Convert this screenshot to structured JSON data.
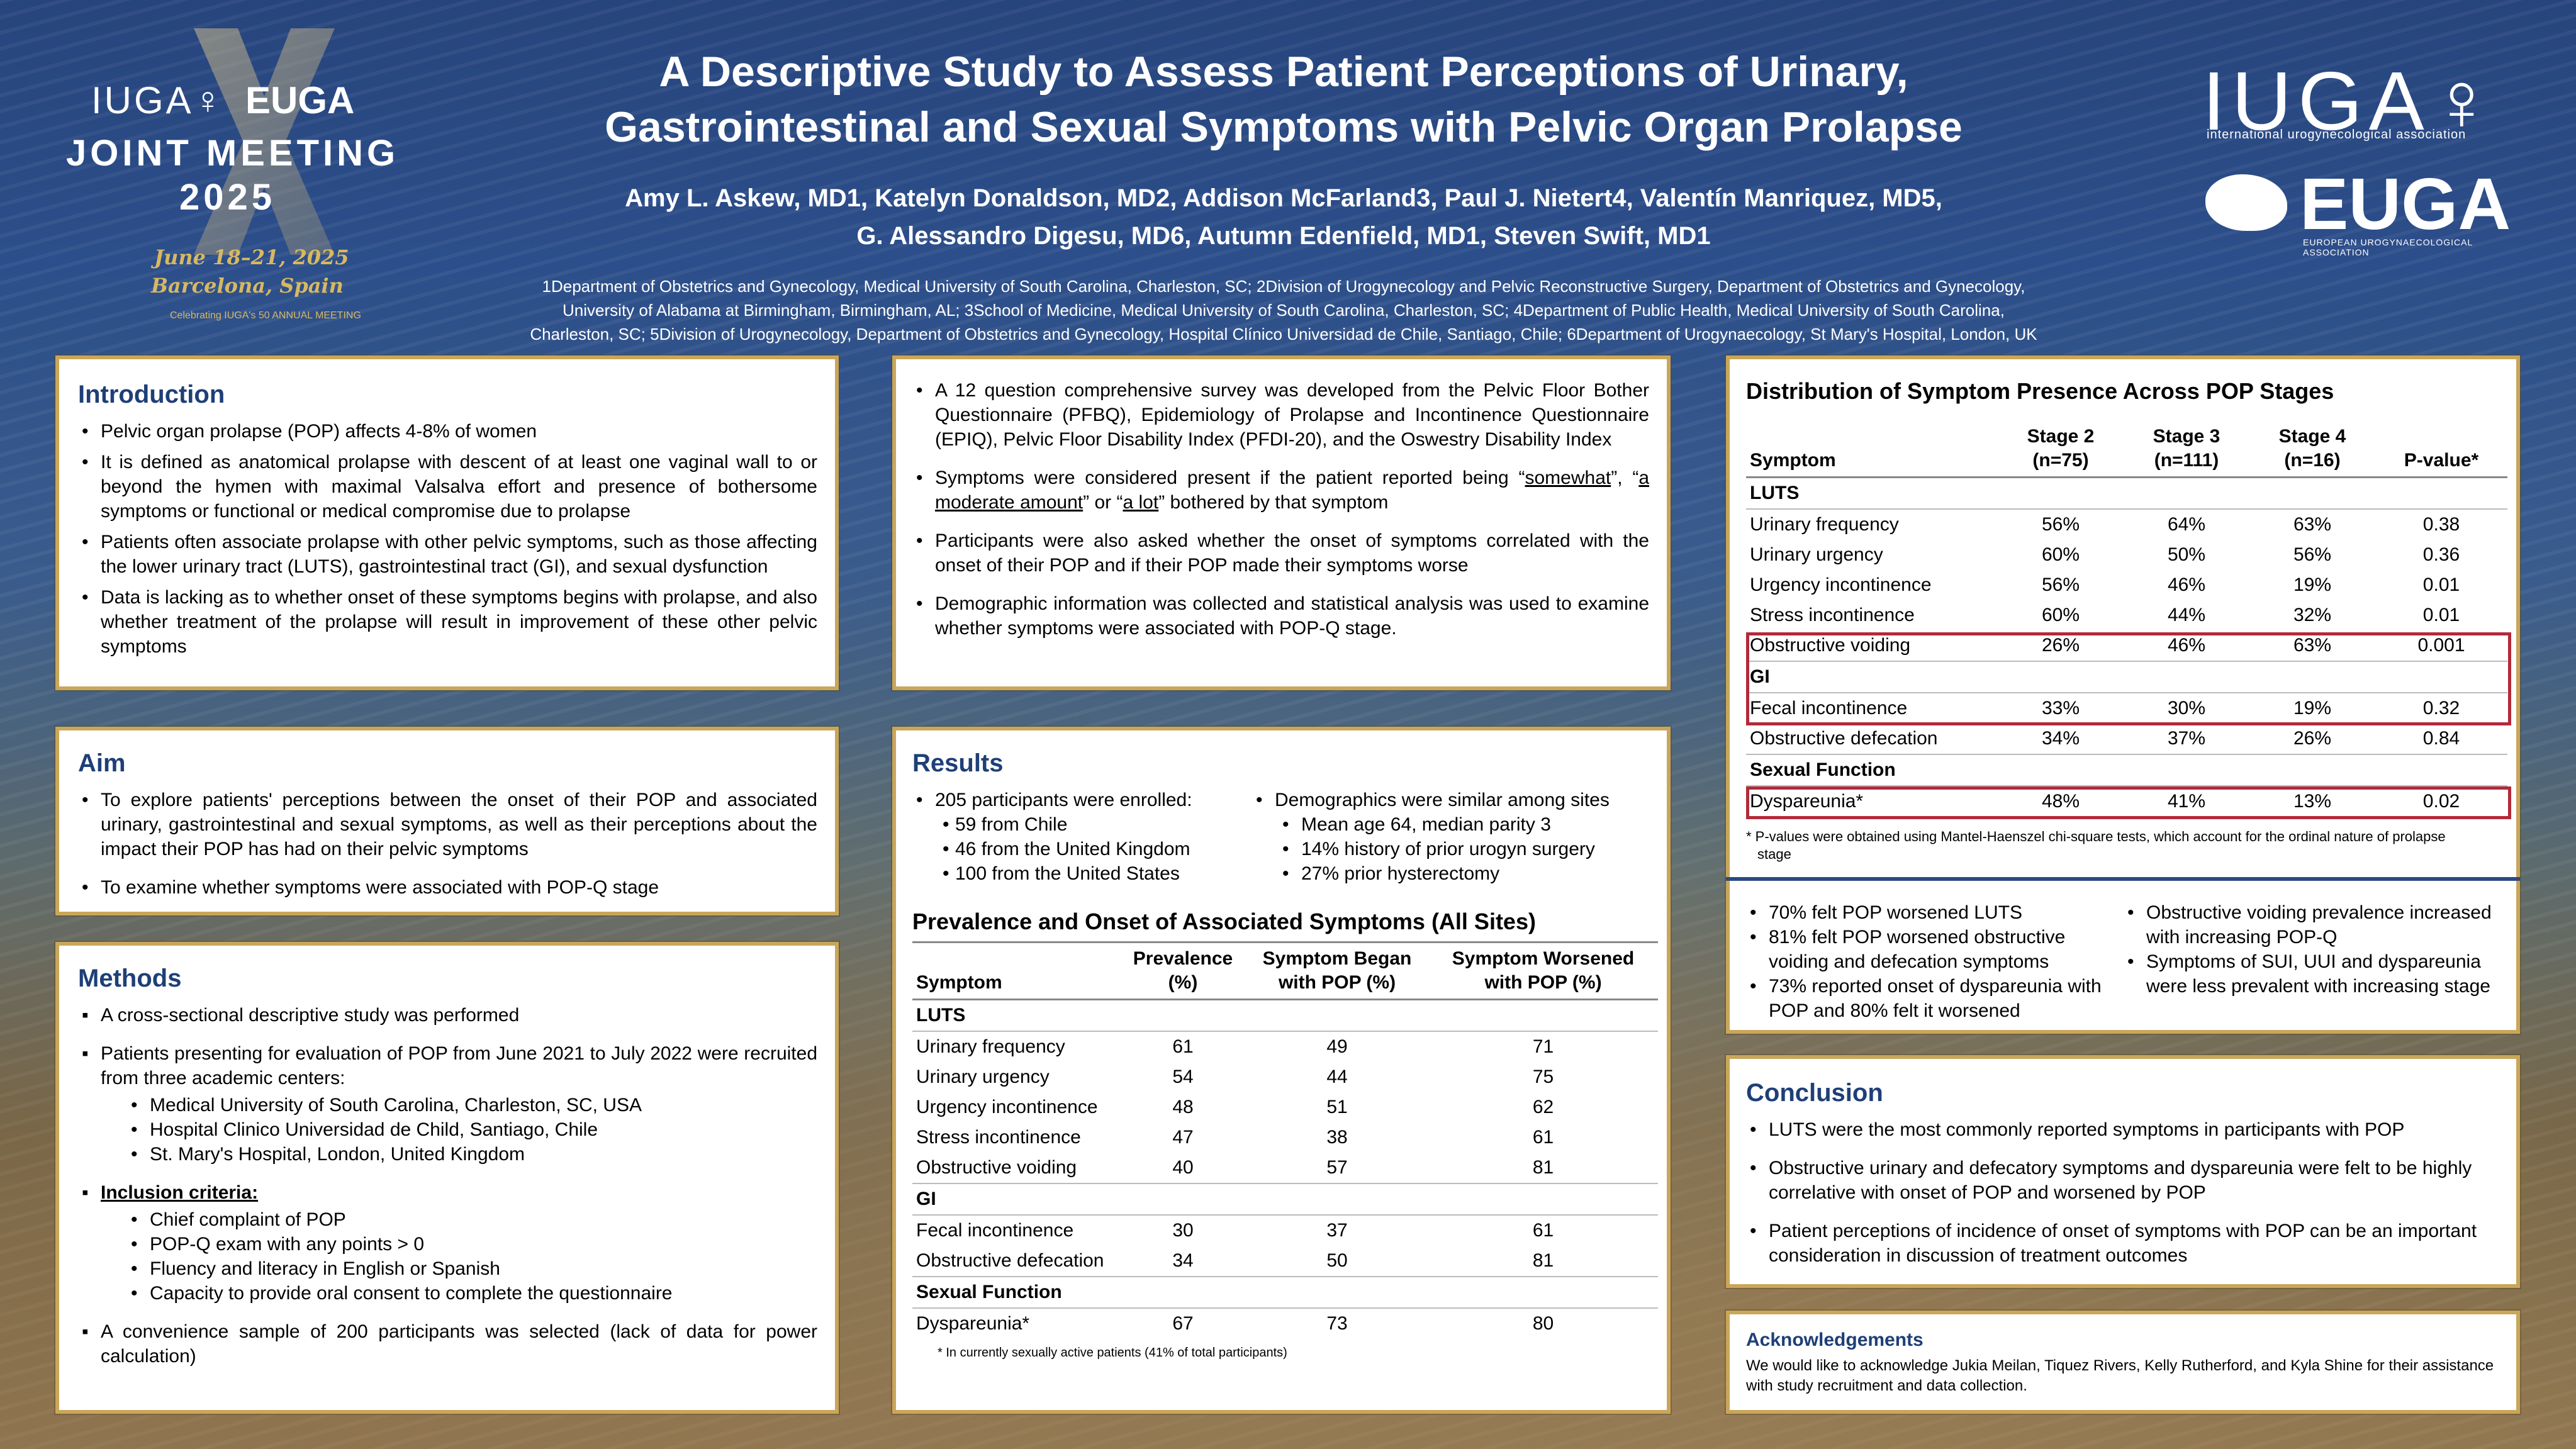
{
  "header": {
    "logo_left": {
      "iuga": "IUGA♀",
      "euga": "EUGA",
      "joint": "JOINT MEETING",
      "year": "2025",
      "dates": "June 18–21, 2025",
      "city": "Barcelona, Spain",
      "anniversary": "Celebrating IUGA's 50 ANNUAL MEETING"
    },
    "title_line1": "A Descriptive Study to Assess Patient Perceptions of Urinary,",
    "title_line2": "Gastrointestinal and Sexual Symptoms with Pelvic Organ Prolapse",
    "authors_line1": "Amy L. Askew, MD1, Katelyn Donaldson, MD2, Addison McFarland3, Paul J. Nietert4, Valentín Manriquez, MD5,",
    "authors_line2": "G. Alessandro Digesu, MD6, Autumn Edenfield, MD1, Steven Swift, MD1",
    "affiliations_line1": "1Department of Obstetrics and Gynecology, Medical University of South Carolina, Charleston, SC; 2Division of Urogynecology and Pelvic Reconstructive Surgery, Department of Obstetrics and Gynecology,",
    "affiliations_line2": "University of Alabama at Birmingham, Birmingham, AL; 3School of Medicine, Medical University of South Carolina, Charleston, SC; 4Department of Public Health, Medical University of South Carolina,",
    "affiliations_line3": "Charleston, SC; 5Division of Urogynecology, Department of Obstetrics and Gynecology, Hospital Clínico Universidad de Chile, Santiago, Chile; 6Department of Urogynaecology, St Mary's Hospital, London, UK",
    "logo_right": {
      "iuga": "IUGA♀",
      "iuga_sub": "international urogynecological association",
      "euga": "EUGA",
      "euga_sub": "EUROPEAN UROGYNAECOLOGICAL ASSOCIATION"
    }
  },
  "introduction": {
    "heading": "Introduction",
    "items": [
      "Pelvic organ prolapse (POP) affects 4-8% of women",
      "It is defined as anatomical prolapse with descent of at least one vaginal wall to or beyond the hymen with maximal Valsalva effort and presence of bothersome symptoms or functional or medical compromise due to prolapse",
      "Patients often associate prolapse with other pelvic symptoms, such as those affecting the lower urinary tract (LUTS), gastrointestinal tract (GI), and sexual dysfunction",
      "Data is lacking as to whether onset of these symptoms begins with prolapse, and also whether treatment of the prolapse will result in improvement of these other pelvic symptoms"
    ]
  },
  "aim": {
    "heading": "Aim",
    "items": [
      "To explore patients' perceptions between the onset of their POP and associated urinary, gastrointestinal and sexual symptoms, as well as their perceptions about the impact their POP has had on their pelvic symptoms",
      "To examine whether symptoms were associated with POP-Q stage"
    ]
  },
  "methods": {
    "heading": "Methods",
    "item1": "A cross-sectional descriptive study was performed",
    "item2": "Patients presenting for evaluation of POP from June 2021 to July 2022 were recruited from three academic centers:",
    "centers": [
      "Medical University of South Carolina, Charleston, SC, USA",
      "Hospital Clinico Universidad de Child, Santiago, Chile",
      "St. Mary's Hospital, London, United Kingdom"
    ],
    "inclusion_label": "Inclusion criteria:",
    "inclusion": [
      "Chief complaint of POP",
      "POP-Q exam with any points > 0",
      "Fluency and literacy in English or Spanish",
      "Capacity to provide oral consent to complete the questionnaire"
    ],
    "item_last": "A convenience sample of 200 participants was selected (lack of data for power calculation)"
  },
  "methods2": {
    "item1": "A 12 question comprehensive survey was developed from the Pelvic Floor Bother Questionnaire (PFBQ), Epidemiology of Prolapse and Incontinence Questionnaire (EPIQ), Pelvic Floor Disability Index (PFDI-20), and the Oswestry Disability Index",
    "item2_pre": "Symptoms were considered present if the patient reported being “",
    "item2_u1": "somewhat",
    "item2_mid1": "”, “",
    "item2_u2": "a moderate amount",
    "item2_mid2": "” or “",
    "item2_u3": "a lot",
    "item2_post": "” bothered by that symptom",
    "item3": "Participants were also asked whether the onset of symptoms correlated with the onset of their POP and if their POP made their symptoms worse",
    "item4": "Demographic information was collected and statistical analysis was used to examine whether symptoms were associated with POP-Q stage."
  },
  "results": {
    "heading": "Results",
    "enrolled": "205 participants were enrolled:",
    "sites": [
      "59 from Chile",
      "46 from the United Kingdom",
      "100 from the United States"
    ],
    "demo": "Demographics were similar among sites",
    "demo_items": [
      "Mean age 64, median parity 3",
      "14% history of prior urogyn surgery",
      "27% prior hysterectomy"
    ],
    "table_title": "Prevalence and Onset of Associated Symptoms (All Sites)",
    "columns": [
      "Symptom",
      "Prevalence (%)",
      "Symptom Began with POP (%)",
      "Symptom Worsened with POP (%)"
    ],
    "groups": [
      {
        "name": "LUTS",
        "rows": [
          [
            "Urinary frequency",
            "61",
            "49",
            "71"
          ],
          [
            "Urinary urgency",
            "54",
            "44",
            "75"
          ],
          [
            "Urgency incontinence",
            "48",
            "51",
            "62"
          ],
          [
            "Stress incontinence",
            "47",
            "38",
            "61"
          ],
          [
            "Obstructive voiding",
            "40",
            "57",
            "81"
          ]
        ]
      },
      {
        "name": "GI",
        "rows": [
          [
            "Fecal incontinence",
            "30",
            "37",
            "61"
          ],
          [
            "Obstructive defecation",
            "34",
            "50",
            "81"
          ]
        ]
      },
      {
        "name": "Sexual Function",
        "rows": [
          [
            "Dyspareunia*",
            "67",
            "73",
            "80"
          ]
        ]
      }
    ],
    "footnote": "* In currently sexually active patients (41% of total participants)"
  },
  "distribution": {
    "title": "Distribution of Symptom Presence Across POP Stages",
    "columns": [
      "Symptom",
      "Stage 2 (n=75)",
      "Stage 3 (n=111)",
      "Stage 4 (n=16)",
      "P-value*"
    ],
    "groups": [
      {
        "name": "LUTS",
        "rows": [
          [
            "Urinary frequency",
            "56%",
            "64%",
            "63%",
            "0.38"
          ],
          [
            "Urinary urgency",
            "60%",
            "50%",
            "56%",
            "0.36"
          ],
          [
            "Urgency incontinence",
            "56%",
            "46%",
            "19%",
            "0.01"
          ],
          [
            "Stress incontinence",
            "60%",
            "44%",
            "32%",
            "0.01"
          ],
          [
            "Obstructive voiding",
            "26%",
            "46%",
            "63%",
            "0.001"
          ]
        ]
      },
      {
        "name": "GI",
        "rows": [
          [
            "Fecal incontinence",
            "33%",
            "30%",
            "19%",
            "0.32"
          ],
          [
            "Obstructive defecation",
            "34%",
            "37%",
            "26%",
            "0.84"
          ]
        ]
      },
      {
        "name": "Sexual Function",
        "rows": [
          [
            "Dyspareunia*",
            "48%",
            "41%",
            "13%",
            "0.02"
          ]
        ]
      }
    ],
    "footnote": "* P-values were obtained using Mantel-Haenszel chi-square tests, which account for the ordinal nature of prolapse stage",
    "findings_left": [
      "70% felt POP worsened LUTS",
      "81% felt POP worsened obstructive voiding and defecation symptoms",
      "73% reported onset of dyspareunia with POP and 80% felt it worsened"
    ],
    "findings_right": [
      "Obstructive voiding prevalence increased with increasing POP-Q",
      "Symptoms of SUI, UUI and dyspareunia were less prevalent with increasing stage"
    ]
  },
  "conclusion": {
    "heading": "Conclusion",
    "items": [
      "LUTS were the most commonly reported symptoms in participants with POP",
      "Obstructive urinary and defecatory symptoms and dyspareunia were felt to be highly correlative with onset of POP and worsened by POP",
      "Patient perceptions of incidence of onset of symptoms with POP can be an important consideration in discussion of treatment outcomes"
    ]
  },
  "acknowledgements": {
    "heading": "Acknowledgements",
    "text": "We would like to acknowledge Jukia Meilan, Tiquez Rivers, Kelly Rutherford, and Kyla Shine for their assistance with study recruitment and data collection."
  },
  "colors": {
    "accent_border": "#c9a65a",
    "heading_blue": "#1e3f77",
    "highlight_red": "#b22a3a"
  }
}
